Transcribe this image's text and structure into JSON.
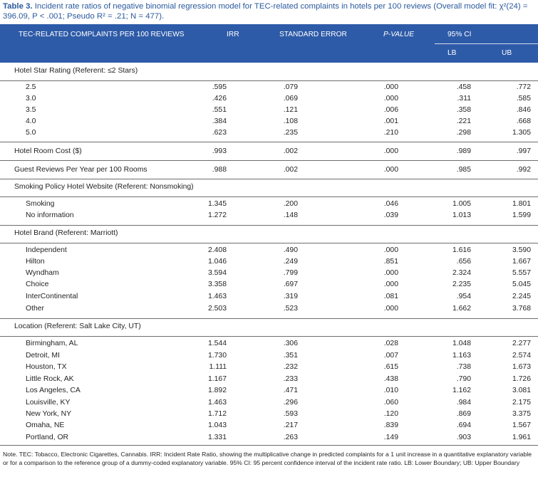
{
  "caption": {
    "label": "Table 3.",
    "text": "Incident rate ratios of negative binomial regression model for TEC-related complaints in hotels per 100 reviews (Overall model fit: χ²(24) = 396.09, P < .001; Pseudo R² = .21; N = 477)."
  },
  "header": {
    "col0": "TEC-RELATED COMPLAINTS PER 100 REVIEWS",
    "col1": "IRR",
    "col2": "STANDARD ERROR",
    "col3": "P-VALUE",
    "col4": "95% CI",
    "lb": "LB",
    "ub": "UB"
  },
  "groups": {
    "star": "Hotel Star Rating (Referent: ≤2 Stars)",
    "smoking": "Smoking Policy Hotel Website (Referent: Nonsmoking)",
    "brand": "Hotel Brand (Referent: Marriott)",
    "location": "Location (Referent: Salt Lake City, UT)"
  },
  "rows": {
    "s25": [
      "2.5",
      ".595",
      ".079",
      ".000",
      ".458",
      ".772"
    ],
    "s30": [
      "3.0",
      ".426",
      ".069",
      ".000",
      ".311",
      ".585"
    ],
    "s35": [
      "3.5",
      ".551",
      ".121",
      ".006",
      ".358",
      ".846"
    ],
    "s40": [
      "4.0",
      ".384",
      ".108",
      ".001",
      ".221",
      ".668"
    ],
    "s50": [
      "5.0",
      ".623",
      ".235",
      ".210",
      ".298",
      "1.305"
    ],
    "cost": [
      "Hotel Room Cost ($)",
      ".993",
      ".002",
      ".000",
      ".989",
      ".997"
    ],
    "reviews": [
      "Guest Reviews Per Year per 100 Rooms",
      ".988",
      ".002",
      ".000",
      ".985",
      ".992"
    ],
    "smoking": [
      "Smoking",
      "1.345",
      ".200",
      ".046",
      "1.005",
      "1.801"
    ],
    "noinfo": [
      "No information",
      "1.272",
      ".148",
      ".039",
      "1.013",
      "1.599"
    ],
    "independent": [
      "Independent",
      "2.408",
      ".490",
      ".000",
      "1.616",
      "3.590"
    ],
    "hilton": [
      "Hilton",
      "1.046",
      ".249",
      ".851",
      ".656",
      "1.667"
    ],
    "wyndham": [
      "Wyndham",
      "3.594",
      ".799",
      ".000",
      "2.324",
      "5.557"
    ],
    "choice": [
      "Choice",
      "3.358",
      ".697",
      ".000",
      "2.235",
      "5.045"
    ],
    "intercontinental": [
      "InterContinental",
      "1.463",
      ".319",
      ".081",
      ".954",
      "2.245"
    ],
    "other": [
      "Other",
      "2.503",
      ".523",
      ".000",
      "1.662",
      "3.768"
    ],
    "birmingham": [
      "Birmingham, AL",
      "1.544",
      ".306",
      ".028",
      "1.048",
      "2.277"
    ],
    "detroit": [
      "Detroit, MI",
      "1.730",
      ".351",
      ".007",
      "1.163",
      "2.574"
    ],
    "houston": [
      "Houston, TX",
      "1.111",
      ".232",
      ".615",
      ".738",
      "1.673"
    ],
    "littlerock": [
      "Little Rock, AK",
      "1.167",
      ".233",
      ".438",
      ".790",
      "1.726"
    ],
    "losangeles": [
      "Los Angeles, CA",
      "1.892",
      ".471",
      ".010",
      "1.162",
      "3.081"
    ],
    "louisville": [
      "Louisville, KY",
      "1.463",
      ".296",
      ".060",
      ".984",
      "2.175"
    ],
    "newyork": [
      "New York, NY",
      "1.712",
      ".593",
      ".120",
      ".869",
      "3.375"
    ],
    "omaha": [
      "Omaha, NE",
      "1.043",
      ".217",
      ".839",
      ".694",
      "1.567"
    ],
    "portland": [
      "Portland, OR",
      "1.331",
      ".263",
      ".149",
      ".903",
      "1.961"
    ]
  },
  "note": "Note. TEC: Tobacco, Electronic Cigarettes, Cannabis. IRR: Incident Rate Ratio, showing the multiplicative change in predicted complaints for a 1 unit increase in a quantitative explanatory variable or for a comparison to the reference group of a dummy-coded explanatory variable. 95% CI: 95 percent confidence interval of the incident rate ratio. LB: Lower Boundary; UB: Upper Boundary"
}
